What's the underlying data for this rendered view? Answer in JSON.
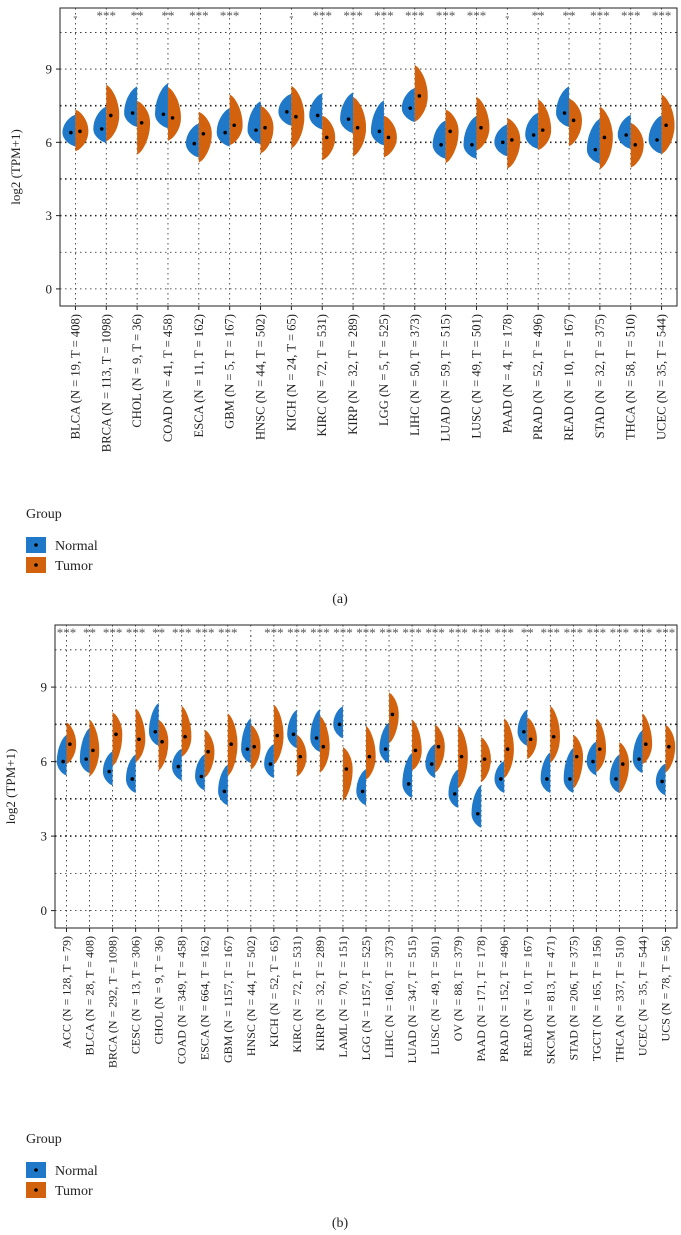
{
  "colors": {
    "normal": "#1f78c8",
    "tumor": "#d2620e",
    "grid": "#222222",
    "text": "#222222"
  },
  "chart_data": [
    {
      "panel_label": "(a)",
      "type": "split-violin",
      "ylabel": "log2 (TPM+1)",
      "yticks": [
        0,
        3,
        6,
        9
      ],
      "ylim": [
        -0.7,
        11.5
      ],
      "grid": "dotted",
      "legend": {
        "title": "Group",
        "entries": [
          "Normal",
          "Tumor"
        ],
        "placement": "bottom-left"
      },
      "groups": [
        {
          "label": "BLCA (N = 19, T = 408)",
          "normal": 6.4,
          "tumor": 6.45,
          "sig": "-"
        },
        {
          "label": "BRCA (N = 113, T = 1098)",
          "normal": 6.55,
          "tumor": 7.1,
          "sig": "***"
        },
        {
          "label": "CHOL (N = 9, T = 36)",
          "normal": 7.2,
          "tumor": 6.8,
          "sig": "**"
        },
        {
          "label": "COAD (N = 41, T = 458)",
          "normal": 7.15,
          "tumor": 7.0,
          "sig": "**"
        },
        {
          "label": "ESCA (N = 11, T = 162)",
          "normal": 5.95,
          "tumor": 6.35,
          "sig": "***"
        },
        {
          "label": "GBM (N = 5, T = 167)",
          "normal": 6.4,
          "tumor": 6.7,
          "sig": "***"
        },
        {
          "label": "HNSC (N = 44, T = 502)",
          "normal": 6.5,
          "tumor": 6.6,
          "sig": ""
        },
        {
          "label": "KICH (N = 24, T = 65)",
          "normal": 7.25,
          "tumor": 7.05,
          "sig": "-"
        },
        {
          "label": "KIRC (N = 72, T = 531)",
          "normal": 7.1,
          "tumor": 6.2,
          "sig": "***"
        },
        {
          "label": "KIRP (N = 32, T = 289)",
          "normal": 6.95,
          "tumor": 6.6,
          "sig": "***"
        },
        {
          "label": "LGG (N = 5, T = 525)",
          "normal": 6.45,
          "tumor": 6.2,
          "sig": "***"
        },
        {
          "label": "LIHC (N = 50, T = 373)",
          "normal": 7.4,
          "tumor": 7.9,
          "sig": "***"
        },
        {
          "label": "LUAD (N = 59, T = 515)",
          "normal": 5.9,
          "tumor": 6.45,
          "sig": "***"
        },
        {
          "label": "LUSC (N = 49, T = 501)",
          "normal": 5.9,
          "tumor": 6.6,
          "sig": "***"
        },
        {
          "label": "PAAD (N = 4, T = 178)",
          "normal": 6.0,
          "tumor": 6.1,
          "sig": "-"
        },
        {
          "label": "PRAD (N = 52, T = 496)",
          "normal": 6.3,
          "tumor": 6.5,
          "sig": "**"
        },
        {
          "label": "READ (N = 10, T = 167)",
          "normal": 7.2,
          "tumor": 6.9,
          "sig": "**"
        },
        {
          "label": "STAD (N = 32, T = 375)",
          "normal": 5.7,
          "tumor": 6.2,
          "sig": "***"
        },
        {
          "label": "THCA (N = 58, T = 510)",
          "normal": 6.3,
          "tumor": 5.9,
          "sig": "***"
        },
        {
          "label": "UCEC (N = 35, T = 544)",
          "normal": 6.1,
          "tumor": 6.7,
          "sig": "***"
        }
      ]
    },
    {
      "panel_label": "(b)",
      "type": "split-violin",
      "ylabel": "log2 (TPM+1)",
      "yticks": [
        0,
        3,
        6,
        9
      ],
      "ylim": [
        -0.7,
        11.5
      ],
      "grid": "dotted",
      "legend": {
        "title": "Group",
        "entries": [
          "Normal",
          "Tumor"
        ],
        "placement": "bottom-left"
      },
      "groups": [
        {
          "label": "ACC (N = 128, T = 79)",
          "normal": 6.0,
          "tumor": 6.7,
          "sig": "***"
        },
        {
          "label": "BLCA (N = 28, T = 408)",
          "normal": 6.1,
          "tumor": 6.45,
          "sig": "**"
        },
        {
          "label": "BRCA (N = 292, T = 1098)",
          "normal": 5.6,
          "tumor": 7.1,
          "sig": "***"
        },
        {
          "label": "CESC (N = 13, T = 306)",
          "normal": 5.3,
          "tumor": 6.9,
          "sig": "***"
        },
        {
          "label": "CHOL (N = 9, T = 36)",
          "normal": 7.2,
          "tumor": 6.8,
          "sig": "**"
        },
        {
          "label": "COAD (N = 349, T = 458)",
          "normal": 5.8,
          "tumor": 7.0,
          "sig": "***"
        },
        {
          "label": "ESCA (N = 664, T = 162)",
          "normal": 5.4,
          "tumor": 6.4,
          "sig": "***"
        },
        {
          "label": "GBM (N = 1157, T = 167)",
          "normal": 4.8,
          "tumor": 6.7,
          "sig": "***"
        },
        {
          "label": "HNSC (N = 44, T = 502)",
          "normal": 6.5,
          "tumor": 6.6,
          "sig": "."
        },
        {
          "label": "KICH (N = 52, T = 65)",
          "normal": 5.9,
          "tumor": 7.05,
          "sig": "***"
        },
        {
          "label": "KIRC (N = 72, T = 531)",
          "normal": 7.1,
          "tumor": 6.2,
          "sig": "***"
        },
        {
          "label": "KIRP (N = 32, T = 289)",
          "normal": 6.95,
          "tumor": 6.6,
          "sig": "***"
        },
        {
          "label": "LAML (N = 70, T = 151)",
          "normal": 7.5,
          "tumor": 5.7,
          "sig": "***"
        },
        {
          "label": "LGG (N = 1157, T = 525)",
          "normal": 4.8,
          "tumor": 6.2,
          "sig": "***"
        },
        {
          "label": "LIHC (N = 160, T = 373)",
          "normal": 6.5,
          "tumor": 7.9,
          "sig": "***"
        },
        {
          "label": "LUAD (N = 347, T = 515)",
          "normal": 5.1,
          "tumor": 6.45,
          "sig": "***"
        },
        {
          "label": "LUSC (N = 49, T = 501)",
          "normal": 5.9,
          "tumor": 6.6,
          "sig": "***"
        },
        {
          "label": "OV (N = 88, T = 379)",
          "normal": 4.7,
          "tumor": 6.2,
          "sig": "***"
        },
        {
          "label": "PAAD (N = 171, T = 178)",
          "normal": 3.9,
          "tumor": 6.1,
          "sig": "***"
        },
        {
          "label": "PRAD (N = 152, T = 496)",
          "normal": 5.3,
          "tumor": 6.5,
          "sig": "***"
        },
        {
          "label": "READ (N = 10, T = 167)",
          "normal": 7.2,
          "tumor": 6.9,
          "sig": "**"
        },
        {
          "label": "SKCM (N = 813, T = 471)",
          "normal": 5.3,
          "tumor": 7.0,
          "sig": "***"
        },
        {
          "label": "STAD (N = 206, T = 375)",
          "normal": 5.3,
          "tumor": 6.2,
          "sig": "***"
        },
        {
          "label": "TGCT (N = 165, T = 156)",
          "normal": 6.0,
          "tumor": 6.5,
          "sig": "***"
        },
        {
          "label": "THCA (N = 337, T = 510)",
          "normal": 5.3,
          "tumor": 5.9,
          "sig": "***"
        },
        {
          "label": "UCEC (N = 35, T = 544)",
          "normal": 6.1,
          "tumor": 6.7,
          "sig": "***"
        },
        {
          "label": "UCS (N = 78, T = 56)",
          "normal": 5.2,
          "tumor": 6.6,
          "sig": "***"
        }
      ]
    }
  ]
}
